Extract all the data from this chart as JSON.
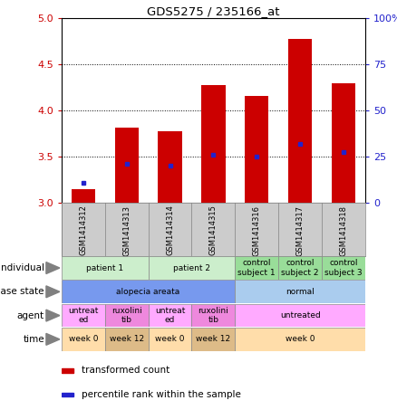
{
  "title": "GDS5275 / 235166_at",
  "samples": [
    "GSM1414312",
    "GSM1414313",
    "GSM1414314",
    "GSM1414315",
    "GSM1414316",
    "GSM1414317",
    "GSM1414318"
  ],
  "transformed_count": [
    3.15,
    3.82,
    3.78,
    4.28,
    4.16,
    4.78,
    4.3
  ],
  "percentile_rank_y": [
    3.22,
    3.42,
    3.4,
    3.52,
    3.5,
    3.64,
    3.55
  ],
  "ylim": [
    3.0,
    5.0
  ],
  "yticks_left": [
    3.0,
    3.5,
    4.0,
    4.5,
    5.0
  ],
  "yticks_right_vals": [
    0,
    25,
    50,
    75,
    100
  ],
  "bar_color": "#cc0000",
  "dot_color": "#2222cc",
  "bg_color": "#ffffff",
  "sample_bg": "#cccccc",
  "individual_cells": [
    {
      "span": [
        0,
        2
      ],
      "label": "patient 1",
      "color": "#cceecc"
    },
    {
      "span": [
        2,
        4
      ],
      "label": "patient 2",
      "color": "#cceecc"
    },
    {
      "span": [
        4,
        5
      ],
      "label": "control\nsubject 1",
      "color": "#99dd99"
    },
    {
      "span": [
        5,
        6
      ],
      "label": "control\nsubject 2",
      "color": "#99dd99"
    },
    {
      "span": [
        6,
        7
      ],
      "label": "control\nsubject 3",
      "color": "#99dd99"
    }
  ],
  "disease_cells": [
    {
      "span": [
        0,
        4
      ],
      "label": "alopecia areata",
      "color": "#7799ee"
    },
    {
      "span": [
        4,
        7
      ],
      "label": "normal",
      "color": "#aaccee"
    }
  ],
  "agent_cells": [
    {
      "span": [
        0,
        1
      ],
      "label": "untreat\ned",
      "color": "#ffaaff"
    },
    {
      "span": [
        1,
        2
      ],
      "label": "ruxolini\ntib",
      "color": "#ee88dd"
    },
    {
      "span": [
        2,
        3
      ],
      "label": "untreat\ned",
      "color": "#ffaaff"
    },
    {
      "span": [
        3,
        4
      ],
      "label": "ruxolini\ntib",
      "color": "#ee88dd"
    },
    {
      "span": [
        4,
        7
      ],
      "label": "untreated",
      "color": "#ffaaff"
    }
  ],
  "time_cells": [
    {
      "span": [
        0,
        1
      ],
      "label": "week 0",
      "color": "#ffddaa"
    },
    {
      "span": [
        1,
        2
      ],
      "label": "week 12",
      "color": "#ddbb88"
    },
    {
      "span": [
        2,
        3
      ],
      "label": "week 0",
      "color": "#ffddaa"
    },
    {
      "span": [
        3,
        4
      ],
      "label": "week 12",
      "color": "#ddbb88"
    },
    {
      "span": [
        4,
        7
      ],
      "label": "week 0",
      "color": "#ffddaa"
    }
  ],
  "row_labels": [
    "individual",
    "disease state",
    "agent",
    "time"
  ],
  "legend": [
    {
      "color": "#cc0000",
      "label": "transformed count"
    },
    {
      "color": "#2222cc",
      "label": "percentile rank within the sample"
    }
  ]
}
